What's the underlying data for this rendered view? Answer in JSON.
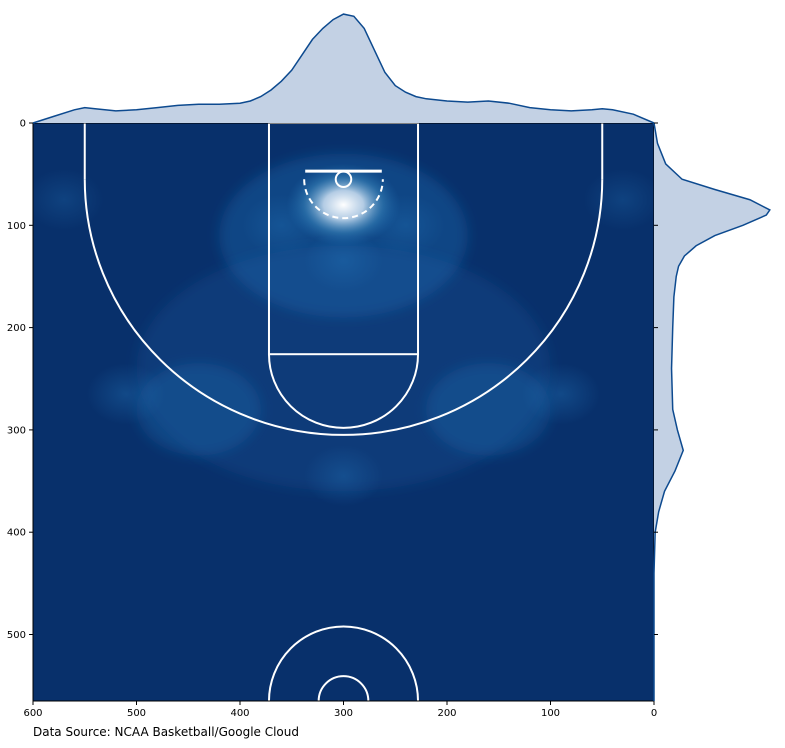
{
  "chart_data": {
    "type": "heatmap",
    "description_source": "caption",
    "source_caption": "Data Source: NCAA Basketball/Google Cloud",
    "xlim": [
      600,
      0
    ],
    "ylim": [
      565,
      0
    ],
    "x_ticks": [
      "600",
      "500",
      "400",
      "300",
      "200",
      "100",
      "0"
    ],
    "x_tick_values": [
      600,
      500,
      400,
      300,
      200,
      100,
      0
    ],
    "y_ticks": [
      "0",
      "100",
      "200",
      "300",
      "400",
      "500"
    ],
    "y_tick_values": [
      0,
      100,
      200,
      300,
      400,
      500
    ],
    "marginal_x": {
      "x": [
        600,
        580,
        560,
        550,
        540,
        520,
        500,
        480,
        460,
        440,
        420,
        400,
        390,
        380,
        370,
        360,
        350,
        340,
        330,
        320,
        310,
        300,
        290,
        280,
        270,
        260,
        250,
        240,
        230,
        220,
        210,
        200,
        180,
        160,
        140,
        120,
        100,
        80,
        60,
        50,
        40,
        20,
        0
      ],
      "density": [
        0.0,
        0.06,
        0.12,
        0.14,
        0.13,
        0.11,
        0.12,
        0.14,
        0.16,
        0.17,
        0.17,
        0.18,
        0.2,
        0.24,
        0.3,
        0.38,
        0.48,
        0.62,
        0.76,
        0.86,
        0.94,
        0.99,
        0.97,
        0.86,
        0.66,
        0.46,
        0.34,
        0.28,
        0.24,
        0.22,
        0.21,
        0.2,
        0.19,
        0.2,
        0.18,
        0.14,
        0.12,
        0.11,
        0.12,
        0.13,
        0.12,
        0.08,
        0.0
      ]
    },
    "marginal_y": {
      "y": [
        0,
        20,
        40,
        55,
        65,
        75,
        85,
        90,
        100,
        110,
        120,
        130,
        140,
        150,
        170,
        200,
        240,
        280,
        300,
        320,
        340,
        360,
        380,
        400,
        440,
        480,
        520,
        565
      ],
      "density": [
        0.0,
        0.03,
        0.1,
        0.24,
        0.52,
        0.82,
        0.99,
        0.96,
        0.76,
        0.52,
        0.36,
        0.26,
        0.21,
        0.19,
        0.17,
        0.16,
        0.15,
        0.16,
        0.2,
        0.25,
        0.18,
        0.09,
        0.04,
        0.01,
        0.0,
        0.0,
        0.0,
        0.0
      ]
    },
    "hotspots": [
      {
        "x": 300,
        "y": 80,
        "intensity": 1.0
      },
      {
        "x": 300,
        "y": 135,
        "intensity": 0.35
      },
      {
        "x": 360,
        "y": 100,
        "intensity": 0.3
      },
      {
        "x": 240,
        "y": 100,
        "intensity": 0.3
      },
      {
        "x": 510,
        "y": 265,
        "intensity": 0.35
      },
      {
        "x": 90,
        "y": 265,
        "intensity": 0.35
      },
      {
        "x": 300,
        "y": 345,
        "intensity": 0.32
      },
      {
        "x": 570,
        "y": 75,
        "intensity": 0.25
      },
      {
        "x": 30,
        "y": 75,
        "intensity": 0.25
      }
    ],
    "colors": {
      "background": "#08306b",
      "hot": "#ffffff",
      "mid": "#2171b5",
      "marginal_fill": "#c3d1e4",
      "marginal_line": "#0d4a8f",
      "court_lines": "#ffffff"
    }
  }
}
